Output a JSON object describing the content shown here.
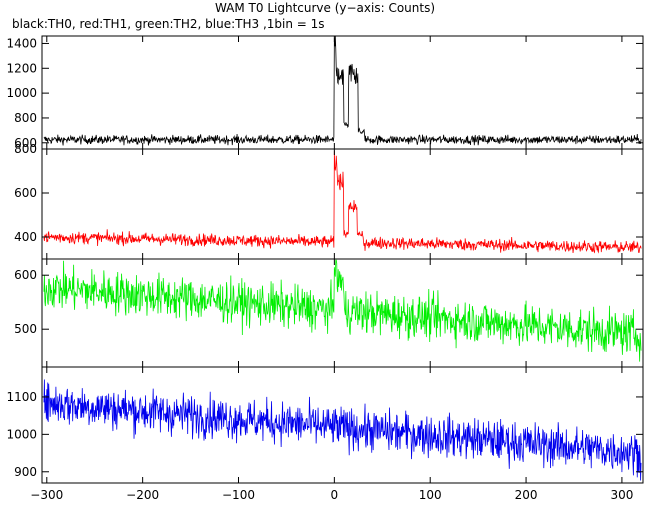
{
  "title": "WAM T0 Lightcurve (y−axis: Counts)",
  "subtitle": "black:TH0, red:TH1, green:TH2, blue:TH3 ,1bin = 1s",
  "chart_data": [
    {
      "type": "line",
      "series": [
        {
          "name": "TH0",
          "color": "#000000"
        }
      ],
      "xlim": [
        -305,
        322
      ],
      "ylim": [
        550,
        1460
      ],
      "yticks": [
        600,
        800,
        1000,
        1200,
        1400
      ],
      "ytick_labels": [
        "600",
        "800",
        "1000",
        "1200",
        "1400"
      ],
      "baseline": 625,
      "noise": 18,
      "bursts": [
        {
          "start": 0,
          "end": 2,
          "peak": 1460
        },
        {
          "start": 2,
          "end": 10,
          "peak": 1200
        },
        {
          "start": 10,
          "end": 15,
          "peak": 760
        },
        {
          "start": 15,
          "end": 25,
          "peak": 1230
        },
        {
          "start": 25,
          "end": 32,
          "peak": 700
        }
      ]
    },
    {
      "type": "line",
      "series": [
        {
          "name": "TH1",
          "color": "#ff0000"
        }
      ],
      "xlim": [
        -305,
        322
      ],
      "ylim": [
        300,
        800
      ],
      "yticks": [
        400,
        600,
        800
      ],
      "ytick_labels": [
        "400",
        "600",
        "800"
      ],
      "baseline_start": 400,
      "baseline_end": 352,
      "noise": 14,
      "bursts": [
        {
          "start": 0,
          "end": 3,
          "peak": 790
        },
        {
          "start": 3,
          "end": 10,
          "peak": 690
        },
        {
          "start": 10,
          "end": 15,
          "peak": 420
        },
        {
          "start": 15,
          "end": 24,
          "peak": 560
        },
        {
          "start": 24,
          "end": 30,
          "peak": 420
        }
      ]
    },
    {
      "type": "line",
      "series": [
        {
          "name": "TH2",
          "color": "#00ee00"
        }
      ],
      "xlim": [
        -305,
        322
      ],
      "ylim": [
        430,
        630
      ],
      "yticks": [
        500,
        600
      ],
      "ytick_labels": [
        "500",
        "600"
      ],
      "baseline_start": 578,
      "baseline_end": 490,
      "noise": 20,
      "bursts": [
        {
          "start": 0,
          "end": 3,
          "peak": 630
        },
        {
          "start": 3,
          "end": 10,
          "peak": 590
        }
      ]
    },
    {
      "type": "line",
      "series": [
        {
          "name": "TH3",
          "color": "#0000ee"
        }
      ],
      "xlim": [
        -305,
        322
      ],
      "ylim": [
        870,
        1180
      ],
      "yticks": [
        900,
        1000,
        1100
      ],
      "ytick_labels": [
        "900",
        "1000",
        "1100"
      ],
      "baseline_start": 1085,
      "baseline_end": 950,
      "noise": 28
    }
  ],
  "x_axis": {
    "ticks": [
      -300,
      -200,
      -100,
      0,
      100,
      200,
      300
    ],
    "tick_labels": [
      "−300",
      "−200",
      "−100",
      "0",
      "100",
      "200",
      "300"
    ]
  }
}
